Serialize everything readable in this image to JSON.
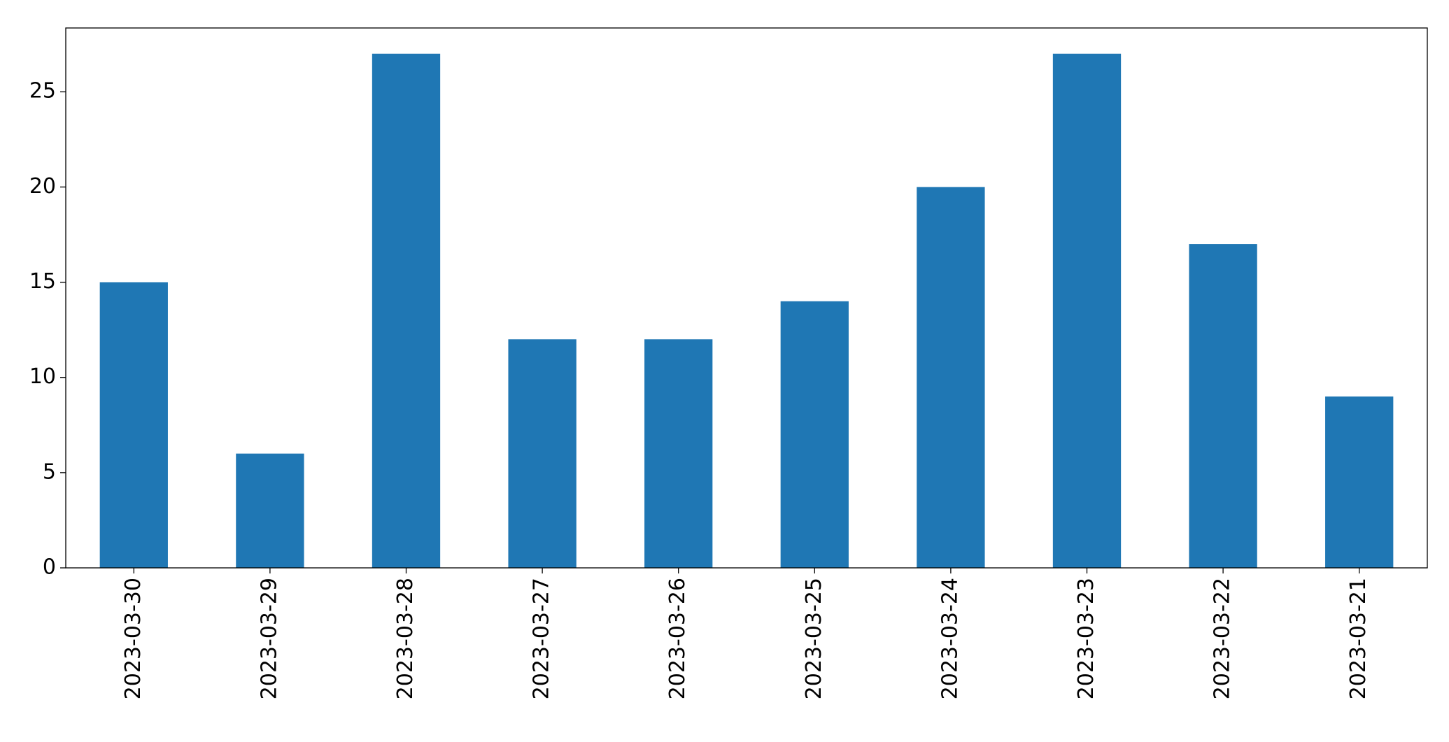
{
  "chart_data": {
    "type": "bar",
    "categories": [
      "2023-03-30",
      "2023-03-29",
      "2023-03-28",
      "2023-03-27",
      "2023-03-26",
      "2023-03-25",
      "2023-03-24",
      "2023-03-23",
      "2023-03-22",
      "2023-03-21"
    ],
    "values": [
      15,
      6,
      27,
      12,
      12,
      14,
      20,
      27,
      17,
      9
    ],
    "color": "#1f77b4",
    "ylim": [
      0,
      28.35
    ],
    "yticks": [
      0,
      5,
      10,
      15,
      20,
      25
    ],
    "grid": false
  }
}
